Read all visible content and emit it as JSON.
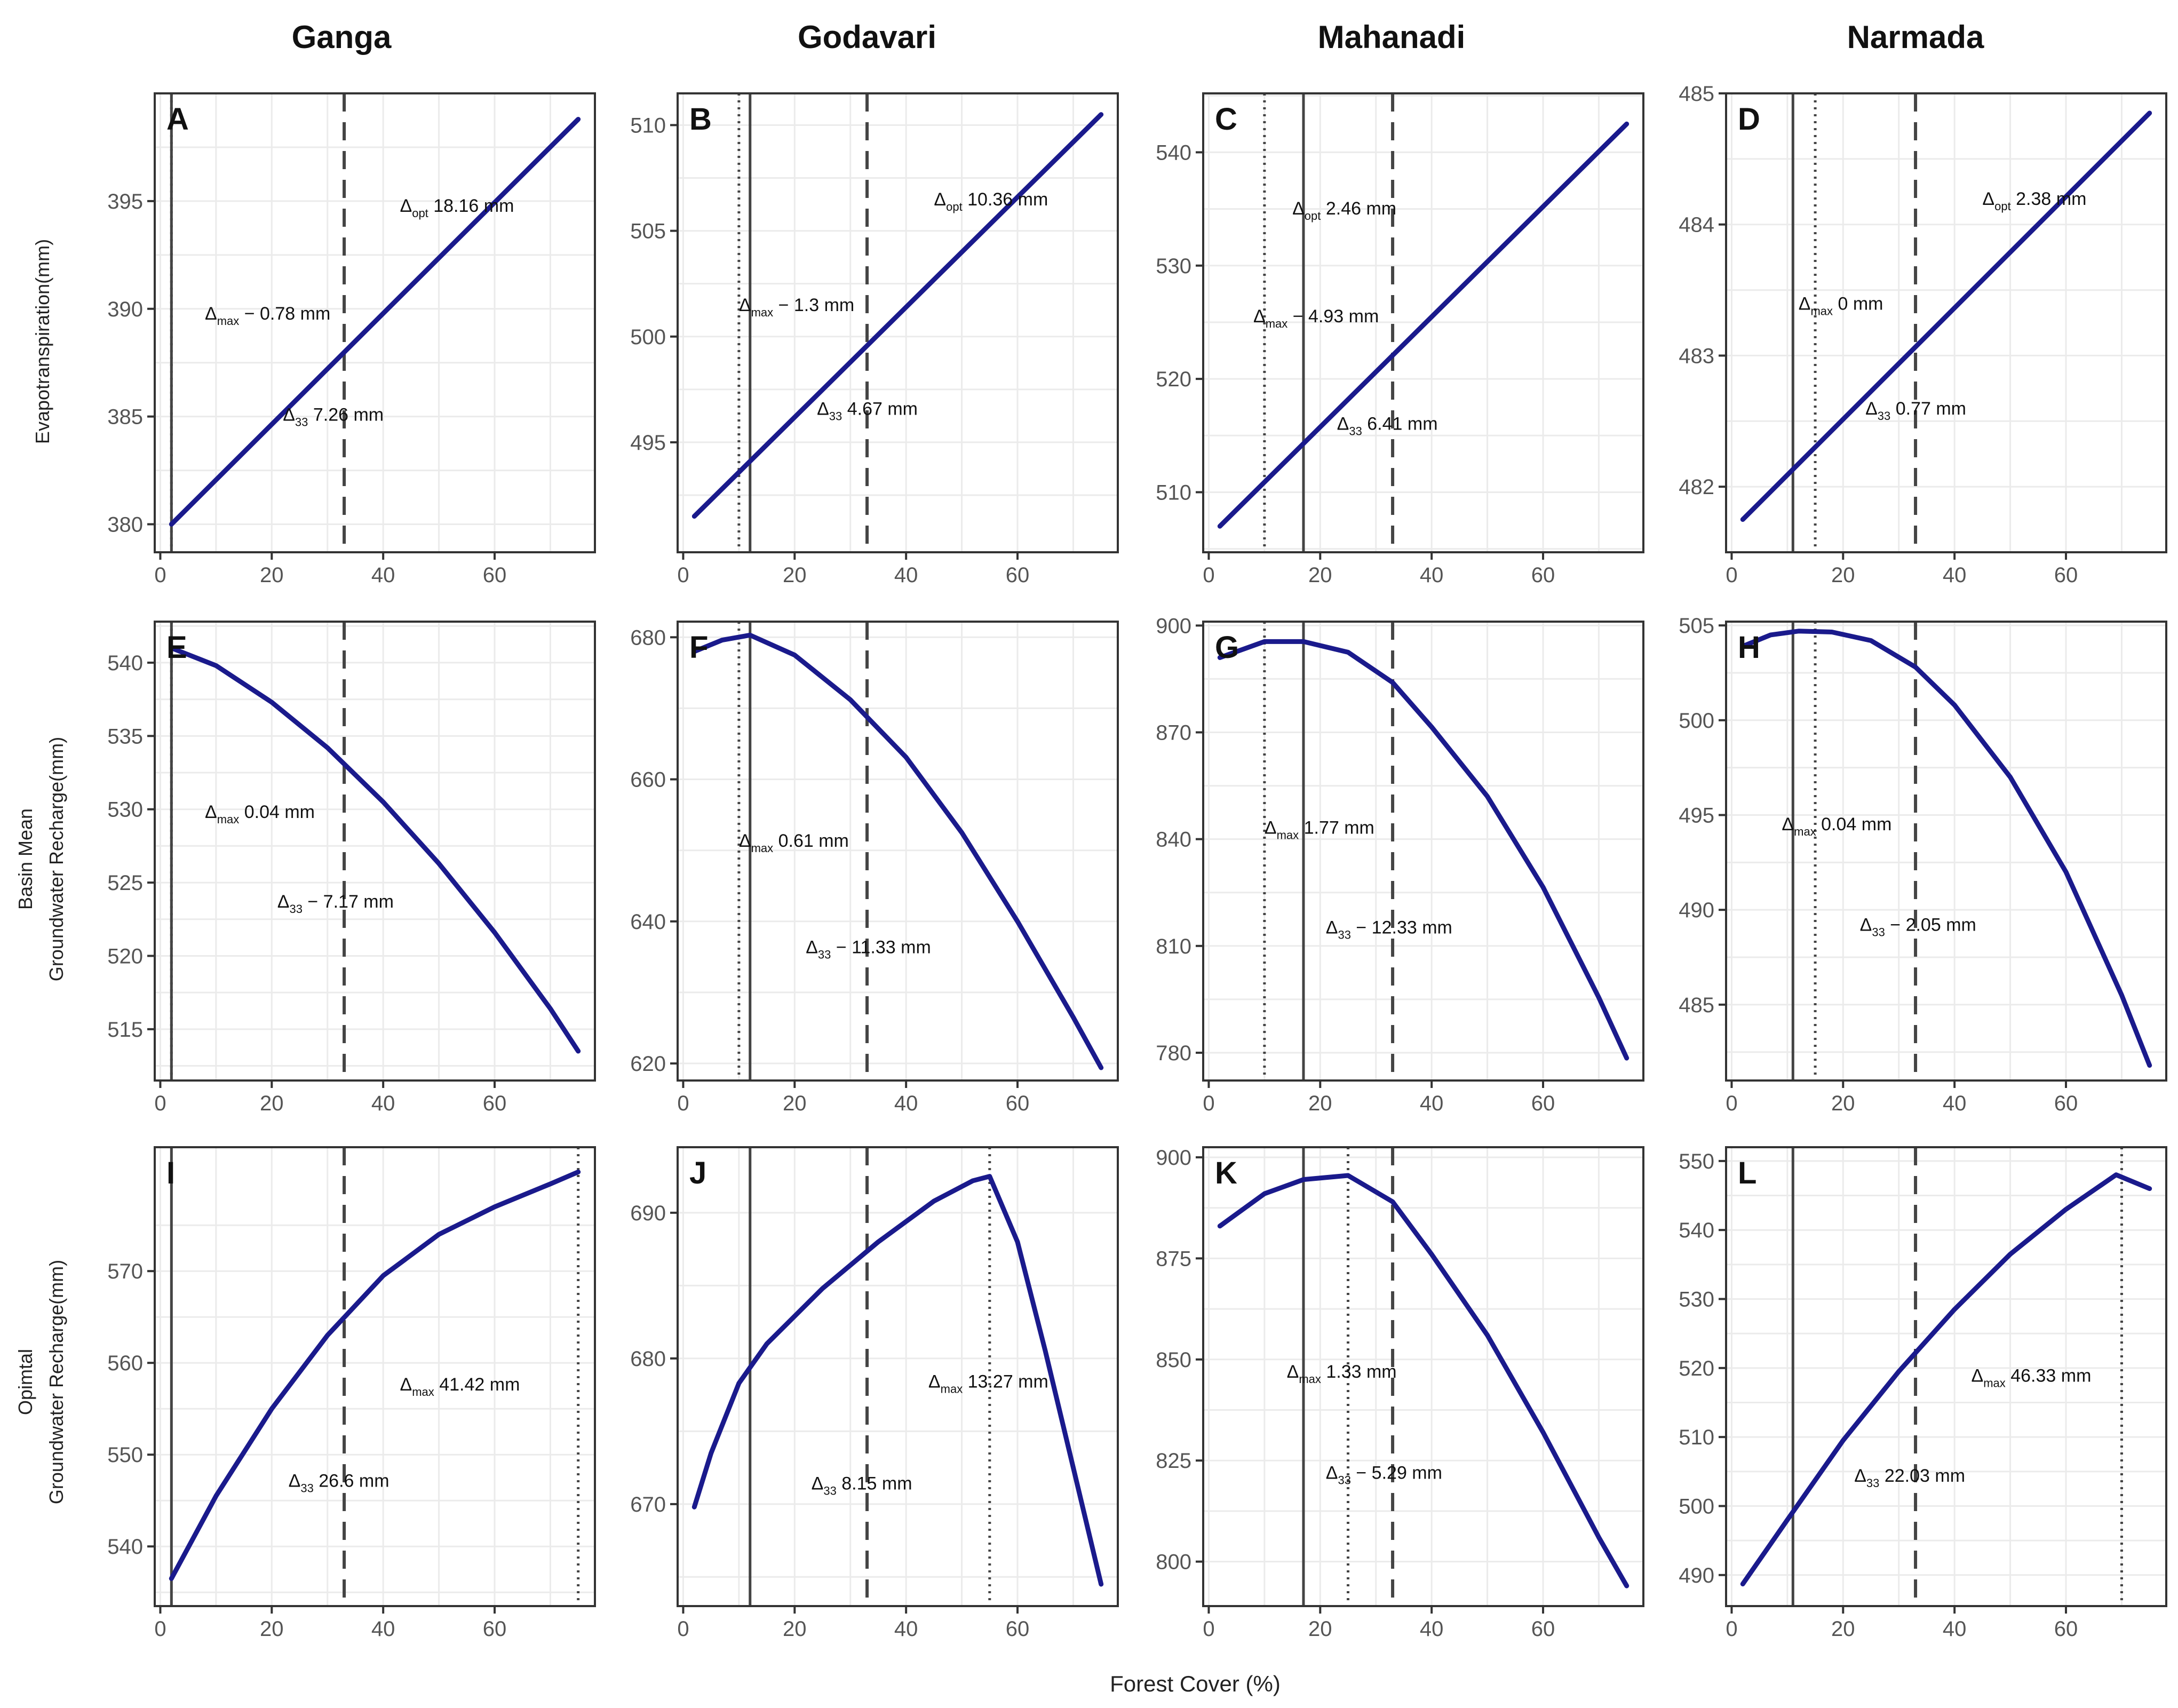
{
  "figure": {
    "column_titles": [
      "Ganga",
      "Godavari",
      "Mahanadi",
      "Narmada"
    ],
    "row_titles": [
      [
        "Evapotranspiration(mm)"
      ],
      [
        "Basin Mean",
        "Groundwater Recharge(mm)"
      ],
      [
        "Opimtal",
        "Groundwater Recharge(mm)"
      ]
    ],
    "x_axis_label": "Forest Cover (%)",
    "colors": {
      "curve": "#1a1a8c",
      "grid": "#ebebeb",
      "axis": "#333333",
      "vline": "#444444"
    }
  },
  "chart_data": [
    {
      "panel": "A",
      "type": "line",
      "basin": "Ganga",
      "row": "Evapotranspiration(mm)",
      "x": [
        2,
        75
      ],
      "y": [
        380,
        398.8
      ],
      "xlim": [
        -1,
        78
      ],
      "ylim": [
        378.7,
        400
      ],
      "xticks": [
        0,
        20,
        40,
        60
      ],
      "yticks": [
        380,
        385,
        390,
        395
      ],
      "vlines": {
        "solid": 2,
        "dashed": 33,
        "dotted": 2
      },
      "annotations": [
        {
          "delta": "Δ",
          "sub": "opt",
          "text": " 18.16 mm",
          "x": 43,
          "y": 394.5
        },
        {
          "delta": "Δ",
          "sub": "max",
          "text": " − 0.78 mm",
          "x": 8,
          "y": 389.5
        },
        {
          "delta": "Δ",
          "sub": "33",
          "text": " 7.26 mm",
          "x": 22,
          "y": 384.8
        }
      ]
    },
    {
      "panel": "B",
      "type": "line",
      "basin": "Godavari",
      "row": "Evapotranspiration(mm)",
      "x": [
        2,
        75
      ],
      "y": [
        491.5,
        510.5
      ],
      "xlim": [
        -1,
        78
      ],
      "ylim": [
        489.8,
        511.5
      ],
      "xticks": [
        0,
        20,
        40,
        60
      ],
      "yticks": [
        495,
        500,
        505,
        510
      ],
      "vlines": {
        "solid": 12,
        "dashed": 33,
        "dotted": 10
      },
      "annotations": [
        {
          "delta": "Δ",
          "sub": "opt",
          "text": " 10.36 mm",
          "x": 45,
          "y": 506.2
        },
        {
          "delta": "Δ",
          "sub": "max",
          "text": " − 1.3 mm",
          "x": 10,
          "y": 501.2
        },
        {
          "delta": "Δ",
          "sub": "33",
          "text": " 4.67 mm",
          "x": 24,
          "y": 496.3
        }
      ]
    },
    {
      "panel": "C",
      "type": "line",
      "basin": "Mahanadi",
      "row": "Evapotranspiration(mm)",
      "x": [
        2,
        75
      ],
      "y": [
        507,
        542.5
      ],
      "xlim": [
        -1,
        78
      ],
      "ylim": [
        504.7,
        545.2
      ],
      "xticks": [
        0,
        20,
        40,
        60
      ],
      "yticks": [
        510,
        520,
        530,
        540
      ],
      "vlines": {
        "solid": 17,
        "dashed": 33,
        "dotted": 10
      },
      "annotations": [
        {
          "delta": "Δ",
          "sub": "opt",
          "text": " 2.46 mm",
          "x": 15,
          "y": 534.5
        },
        {
          "delta": "Δ",
          "sub": "max",
          "text": " − 4.93 mm",
          "x": 8,
          "y": 525
        },
        {
          "delta": "Δ",
          "sub": "33",
          "text": " 6.41 mm",
          "x": 23,
          "y": 515.5
        }
      ]
    },
    {
      "panel": "D",
      "type": "line",
      "basin": "Narmada",
      "row": "Evapotranspiration(mm)",
      "x": [
        2,
        75
      ],
      "y": [
        481.75,
        484.85
      ],
      "xlim": [
        -1,
        78
      ],
      "ylim": [
        481.5,
        485
      ],
      "xticks": [
        0,
        20,
        40,
        60
      ],
      "yticks": [
        482,
        483,
        484,
        485
      ],
      "vlines": {
        "solid": 11,
        "dashed": 33,
        "dotted": 15
      },
      "annotations": [
        {
          "delta": "Δ",
          "sub": "opt",
          "text": " 2.38 mm",
          "x": 45,
          "y": 484.15
        },
        {
          "delta": "Δ",
          "sub": "max",
          "text": " 0 mm",
          "x": 12,
          "y": 483.35
        },
        {
          "delta": "Δ",
          "sub": "33",
          "text": " 0.77 mm",
          "x": 24,
          "y": 482.55
        }
      ]
    },
    {
      "panel": "E",
      "type": "line",
      "basin": "Ganga",
      "row": "Basin Mean Groundwater Recharge(mm)",
      "x": [
        2,
        10,
        20,
        30,
        40,
        50,
        60,
        70,
        75
      ],
      "y": [
        541,
        539.8,
        537.3,
        534.2,
        530.5,
        526.3,
        521.6,
        516.4,
        513.5
      ],
      "xlim": [
        -1,
        78
      ],
      "ylim": [
        511.5,
        542.8
      ],
      "xticks": [
        0,
        20,
        40,
        60
      ],
      "yticks": [
        515,
        520,
        525,
        530,
        535,
        540
      ],
      "vlines": {
        "solid": 2,
        "dashed": 33,
        "dotted": 2
      },
      "annotations": [
        {
          "delta": "Δ",
          "sub": "max",
          "text": " 0.04 mm",
          "x": 8,
          "y": 529.4
        },
        {
          "delta": "Δ",
          "sub": "33",
          "text": " − 7.17 mm",
          "x": 21,
          "y": 523.3
        }
      ]
    },
    {
      "panel": "F",
      "type": "line",
      "basin": "Godavari",
      "row": "Basin Mean Groundwater Recharge(mm)",
      "x": [
        2,
        7,
        12,
        20,
        30,
        40,
        50,
        60,
        70,
        75
      ],
      "y": [
        678,
        679.6,
        680.3,
        677.5,
        671.2,
        663.1,
        652.5,
        640,
        626.5,
        619.4
      ],
      "xlim": [
        -1,
        78
      ],
      "ylim": [
        617.6,
        682.2
      ],
      "xticks": [
        0,
        20,
        40,
        60
      ],
      "yticks": [
        620,
        640,
        660,
        680
      ],
      "vlines": {
        "solid": 12,
        "dashed": 33,
        "dotted": 10
      },
      "annotations": [
        {
          "delta": "Δ",
          "sub": "max",
          "text": " 0.61 mm",
          "x": 10,
          "y": 650.5
        },
        {
          "delta": "Δ",
          "sub": "33",
          "text": " − 11.33 mm",
          "x": 22,
          "y": 635.5
        }
      ]
    },
    {
      "panel": "G",
      "type": "line",
      "basin": "Mahanadi",
      "row": "Basin Mean Groundwater Recharge(mm)",
      "x": [
        2,
        10,
        17,
        25,
        33,
        40,
        50,
        60,
        70,
        75
      ],
      "y": [
        891,
        895.5,
        895.5,
        892.5,
        884,
        871.5,
        852,
        826.5,
        795.5,
        778.5
      ],
      "xlim": [
        -1,
        78
      ],
      "ylim": [
        772.2,
        901.1
      ],
      "xticks": [
        0,
        20,
        40,
        60
      ],
      "yticks": [
        780,
        810,
        840,
        870,
        900
      ],
      "vlines": {
        "solid": 17,
        "dashed": 33,
        "dotted": 10
      },
      "annotations": [
        {
          "delta": "Δ",
          "sub": "max",
          "text": " 1.77 mm",
          "x": 10,
          "y": 841.5
        },
        {
          "delta": "Δ",
          "sub": "33",
          "text": " − 12.33 mm",
          "x": 21,
          "y": 813.5
        }
      ]
    },
    {
      "panel": "H",
      "type": "line",
      "basin": "Narmada",
      "row": "Basin Mean Groundwater Recharge(mm)",
      "x": [
        2,
        7,
        12,
        18,
        25,
        33,
        40,
        50,
        60,
        70,
        75
      ],
      "y": [
        503.9,
        504.5,
        504.7,
        504.65,
        504.2,
        502.8,
        500.8,
        497,
        492,
        485.5,
        481.8
      ],
      "xlim": [
        -1,
        78
      ],
      "ylim": [
        481,
        505.2
      ],
      "xticks": [
        0,
        20,
        40,
        60
      ],
      "yticks": [
        485,
        490,
        495,
        500,
        505
      ],
      "vlines": {
        "solid": 11,
        "dashed": 33,
        "dotted": 15
      },
      "annotations": [
        {
          "delta": "Δ",
          "sub": "max",
          "text": " 0.04 mm",
          "x": 9,
          "y": 494.2
        },
        {
          "delta": "Δ",
          "sub": "33",
          "text": " − 2.05 mm",
          "x": 23,
          "y": 488.9
        }
      ]
    },
    {
      "panel": "I",
      "type": "line",
      "basin": "Ganga",
      "row": "Opimtal Groundwater Recharge(mm)",
      "x": [
        2,
        10,
        20,
        30,
        40,
        50,
        60,
        70,
        75
      ],
      "y": [
        536.5,
        545.5,
        555,
        563,
        569.5,
        574,
        577,
        579.5,
        580.8
      ],
      "xlim": [
        -1,
        78
      ],
      "ylim": [
        533.5,
        583.5
      ],
      "xticks": [
        0,
        20,
        40,
        60
      ],
      "yticks": [
        540,
        550,
        560,
        570
      ],
      "vlines": {
        "solid": 2,
        "dashed": 33,
        "dotted": 75
      },
      "annotations": [
        {
          "delta": "Δ",
          "sub": "max",
          "text": " 41.42 mm",
          "x": 43,
          "y": 557
        },
        {
          "delta": "Δ",
          "sub": "33",
          "text": " 26.6 mm",
          "x": 23,
          "y": 546.5
        }
      ]
    },
    {
      "panel": "J",
      "type": "line",
      "basin": "Godavari",
      "row": "Opimtal Groundwater Recharge(mm)",
      "x": [
        2,
        5,
        10,
        15,
        25,
        35,
        45,
        52,
        55,
        60,
        65,
        70,
        75
      ],
      "y": [
        669.8,
        673.5,
        678.3,
        681,
        684.8,
        688,
        690.8,
        692.2,
        692.5,
        688,
        680.5,
        672.5,
        664.5
      ],
      "xlim": [
        -1,
        78
      ],
      "ylim": [
        663,
        694.5
      ],
      "xticks": [
        0,
        20,
        40,
        60
      ],
      "yticks": [
        670,
        680,
        690
      ],
      "vlines": {
        "solid": 12,
        "dashed": 33,
        "dotted": 55
      },
      "annotations": [
        {
          "delta": "Δ",
          "sub": "max",
          "text": " 13.27 mm",
          "x": 44,
          "y": 678
        },
        {
          "delta": "Δ",
          "sub": "33",
          "text": " 8.15 mm",
          "x": 23,
          "y": 671
        }
      ]
    },
    {
      "panel": "K",
      "type": "line",
      "basin": "Mahanadi",
      "row": "Opimtal Groundwater Recharge(mm)",
      "x": [
        2,
        10,
        17,
        25,
        33,
        40,
        50,
        60,
        70,
        75
      ],
      "y": [
        883,
        891,
        894.5,
        895.5,
        889,
        876,
        856,
        832,
        806,
        794
      ],
      "xlim": [
        -1,
        78
      ],
      "ylim": [
        789,
        902.5
      ],
      "xticks": [
        0,
        20,
        40,
        60
      ],
      "yticks": [
        800,
        825,
        850,
        875,
        900
      ],
      "vlines": {
        "solid": 17,
        "dashed": 33,
        "dotted": 25
      },
      "annotations": [
        {
          "delta": "Δ",
          "sub": "max",
          "text": " 1.33 mm",
          "x": 14,
          "y": 845.5
        },
        {
          "delta": "Δ",
          "sub": "33",
          "text": " − 5.29 mm",
          "x": 21,
          "y": 820.5
        }
      ]
    },
    {
      "panel": "L",
      "type": "line",
      "basin": "Narmada",
      "row": "Opimtal Groundwater Recharge(mm)",
      "x": [
        2,
        10,
        20,
        30,
        40,
        50,
        60,
        69,
        75
      ],
      "y": [
        488.7,
        498,
        509.5,
        519.5,
        528.5,
        536.5,
        543,
        548,
        546
      ],
      "xlim": [
        -1,
        78
      ],
      "ylim": [
        485.5,
        552
      ],
      "xticks": [
        0,
        20,
        40,
        60
      ],
      "yticks": [
        490,
        500,
        510,
        520,
        530,
        540,
        550
      ],
      "vlines": {
        "solid": 11,
        "dashed": 33,
        "dotted": 70
      },
      "annotations": [
        {
          "delta": "Δ",
          "sub": "max",
          "text": " 46.33 mm",
          "x": 43,
          "y": 518
        },
        {
          "delta": "Δ",
          "sub": "33",
          "text": " 22.03 mm",
          "x": 22,
          "y": 503.5
        }
      ]
    }
  ]
}
